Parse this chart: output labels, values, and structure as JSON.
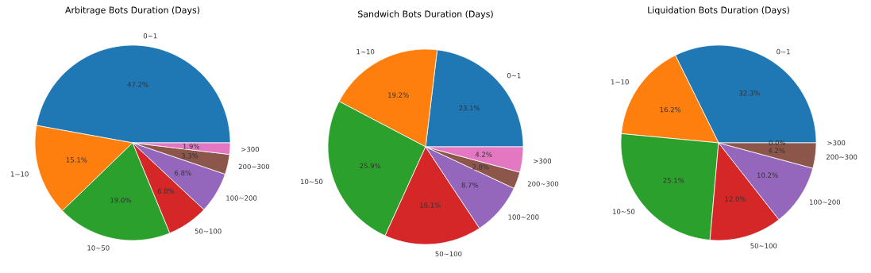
{
  "chart_data": [
    {
      "type": "pie",
      "title": "Arbitrage Bots Duration (Days)",
      "categories": [
        "0~1",
        "1~10",
        "10~50",
        "50~100",
        "100~200",
        "200~300",
        ">300"
      ],
      "values": [
        47.2,
        15.1,
        19.0,
        6.8,
        6.8,
        3.3,
        1.9
      ],
      "value_labels": [
        "47.2%",
        "15.1%",
        "19.0%",
        "6.8%",
        "6.8%",
        "3.3%",
        "1.9%"
      ],
      "colors": [
        "#1f77b4",
        "#ff7f0e",
        "#2ca02c",
        "#d62728",
        "#9467bd",
        "#8c564b",
        "#e377c2"
      ]
    },
    {
      "type": "pie",
      "title": "Sandwich Bots Duration (Days)",
      "categories": [
        "0~1",
        "1~10",
        "10~50",
        "50~100",
        "100~200",
        "200~300",
        ">300"
      ],
      "values": [
        23.1,
        19.2,
        25.9,
        16.1,
        8.7,
        2.8,
        4.2
      ],
      "value_labels": [
        "23.1%",
        "19.2%",
        "25.9%",
        "16.1%",
        "8.7%",
        "2.8%",
        "4.2%"
      ],
      "colors": [
        "#1f77b4",
        "#ff7f0e",
        "#2ca02c",
        "#d62728",
        "#9467bd",
        "#8c564b",
        "#e377c2"
      ]
    },
    {
      "type": "pie",
      "title": "Liquidation Bots Duration (Days)",
      "categories": [
        "0~1",
        "1~10",
        "10~50",
        "50~100",
        "100~200",
        "200~300",
        ">300"
      ],
      "values": [
        32.3,
        16.2,
        25.1,
        12.0,
        10.2,
        4.2,
        0.0
      ],
      "value_labels": [
        "32.3%",
        "16.2%",
        "25.1%",
        "12.0%",
        "10.2%",
        "4.2%",
        "0.0%"
      ],
      "colors": [
        "#1f77b4",
        "#ff7f0e",
        "#2ca02c",
        "#d62728",
        "#9467bd",
        "#8c564b",
        "#e377c2"
      ]
    }
  ]
}
